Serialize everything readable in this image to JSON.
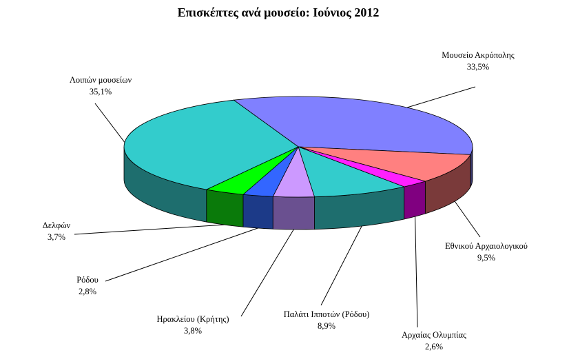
{
  "chart_data": {
    "type": "pie",
    "style": "3d",
    "title": "Επισκέπτες ανά μουσείο: Ιούνιος 2012",
    "legend": "none",
    "slices": [
      {
        "name": "Μουσείο Ακρόπολης",
        "value": 33.5,
        "label": "33,5%",
        "color": "#8080ff",
        "side": "#3a3a70"
      },
      {
        "name": "Εθνικού Αρχαιολογικού",
        "value": 9.5,
        "label": "9,5%",
        "color": "#ff8080",
        "side": "#7a3a3a"
      },
      {
        "name": "Αρχαίας Ολυμπίας",
        "value": 2.6,
        "label": "2,6%",
        "color": "#ff20ff",
        "side": "#800080"
      },
      {
        "name": "Παλάτι Ιπποτών (Ρόδου)",
        "value": 8.9,
        "label": "8,9%",
        "color": "#33cccc",
        "side": "#1e6e6e"
      },
      {
        "name": "Ηρακλείου (Κρήτης)",
        "value": 3.8,
        "label": "3,8%",
        "color": "#cc99ff",
        "side": "#6a5090"
      },
      {
        "name": "Ρόδου",
        "value": 2.8,
        "label": "2,8%",
        "color": "#3366ff",
        "side": "#1c3a88"
      },
      {
        "name": "Δελφών",
        "value": 3.7,
        "label": "3,7%",
        "color": "#00ff00",
        "side": "#0a7a0a"
      },
      {
        "name": "Λοιπών μουσείων",
        "value": 35.1,
        "label": "35,1%",
        "color": "#33cccc",
        "side": "#1e6e6e"
      }
    ]
  }
}
